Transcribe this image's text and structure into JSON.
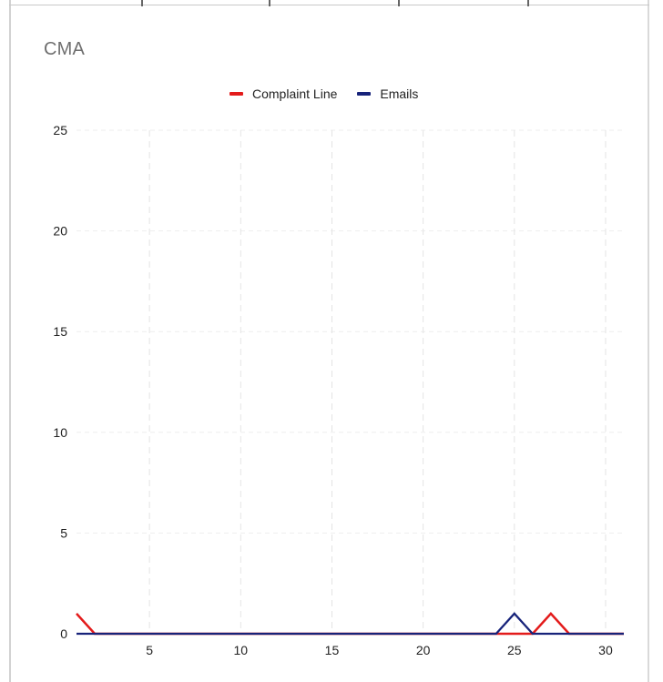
{
  "chart_data": {
    "type": "line",
    "title": "CMA",
    "legend": {
      "placement": "top",
      "entries": [
        "Complaint Line",
        "Emails"
      ]
    },
    "x": [
      1,
      2,
      3,
      4,
      5,
      6,
      7,
      8,
      9,
      10,
      11,
      12,
      13,
      14,
      15,
      16,
      17,
      18,
      19,
      20,
      21,
      22,
      23,
      24,
      25,
      26,
      27,
      28,
      29,
      30,
      31
    ],
    "xticks": [
      5,
      10,
      15,
      20,
      25,
      30
    ],
    "yticks": [
      0,
      5,
      10,
      15,
      20,
      25
    ],
    "xlim": [
      1,
      31
    ],
    "ylim": [
      0,
      25
    ],
    "grid": true,
    "series": [
      {
        "name": "Complaint Line",
        "color": "#e31b1b",
        "values": [
          1,
          0,
          0,
          0,
          0,
          0,
          0,
          0,
          0,
          0,
          0,
          0,
          0,
          0,
          0,
          0,
          0,
          0,
          0,
          0,
          0,
          0,
          0,
          0,
          0,
          0,
          1,
          0,
          0,
          0,
          0
        ]
      },
      {
        "name": "Emails",
        "color": "#17237a",
        "values": [
          0,
          0,
          0,
          0,
          0,
          0,
          0,
          0,
          0,
          0,
          0,
          0,
          0,
          0,
          0,
          0,
          0,
          0,
          0,
          0,
          0,
          0,
          0,
          0,
          1,
          0,
          0,
          0,
          0,
          0,
          0
        ]
      }
    ]
  }
}
